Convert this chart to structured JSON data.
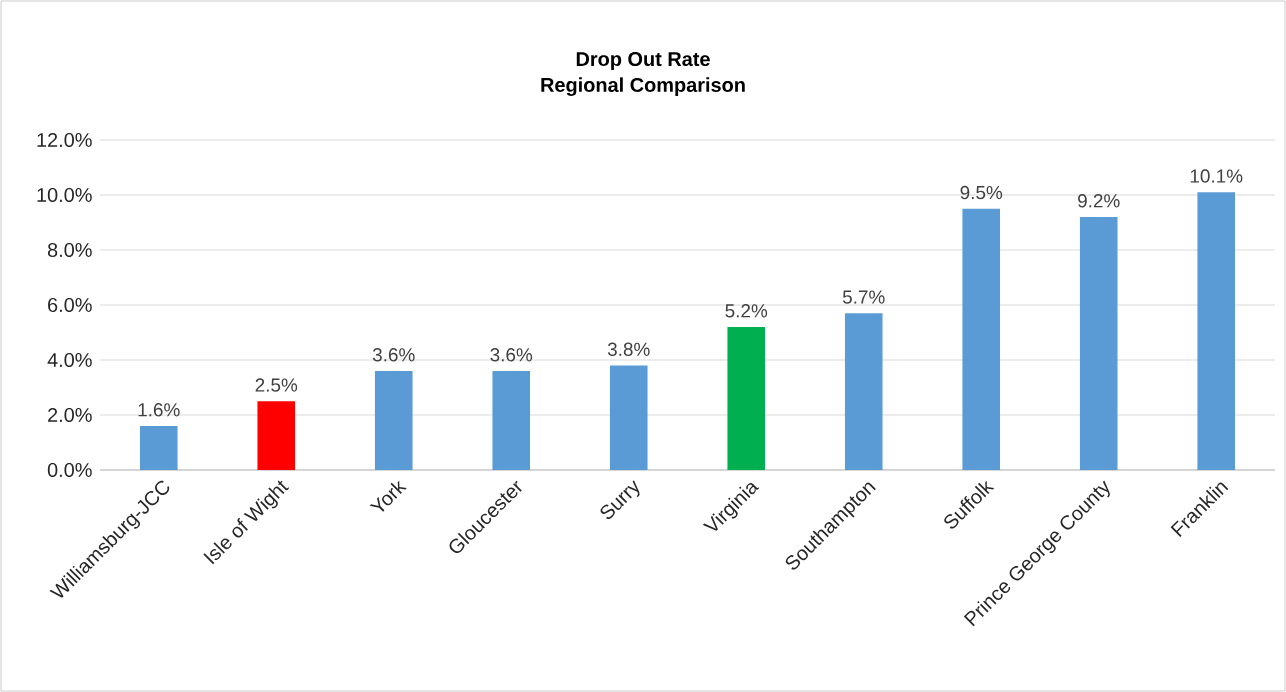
{
  "chart_data": {
    "type": "bar",
    "title": "Drop Out Rate",
    "subtitle": "Regional Comparison",
    "categories": [
      "Williamsburg-JCC",
      "Isle of Wight",
      "York",
      "Gloucester",
      "Surry",
      "Virginia",
      "Southampton",
      "Suffolk",
      "Prince George County",
      "Franklin"
    ],
    "values": [
      1.6,
      2.5,
      3.6,
      3.6,
      3.8,
      5.2,
      5.7,
      9.5,
      9.2,
      10.1
    ],
    "colors": [
      "#5b9bd5",
      "#ff0000",
      "#5b9bd5",
      "#5b9bd5",
      "#5b9bd5",
      "#00b050",
      "#5b9bd5",
      "#5b9bd5",
      "#5b9bd5",
      "#5b9bd5"
    ],
    "value_labels": [
      "1.6%",
      "2.5%",
      "3.6%",
      "3.6%",
      "3.8%",
      "5.2%",
      "5.7%",
      "9.5%",
      "9.2%",
      "10.1%"
    ],
    "ylim": [
      0,
      12
    ],
    "yticks": [
      {
        "value": 0,
        "label": "0.0%"
      },
      {
        "value": 2,
        "label": "2.0%"
      },
      {
        "value": 4,
        "label": "4.0%"
      },
      {
        "value": 6,
        "label": "6.0%"
      },
      {
        "value": 8,
        "label": "8.0%"
      },
      {
        "value": 10,
        "label": "10.0%"
      },
      {
        "value": 12,
        "label": "12.0%"
      }
    ],
    "grid": "y",
    "legend": false
  }
}
